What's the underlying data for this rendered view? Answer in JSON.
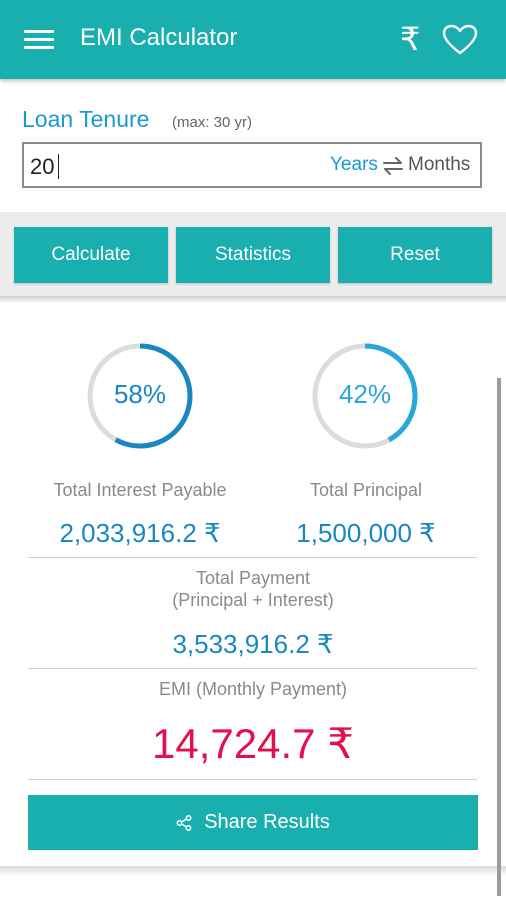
{
  "app": {
    "title": "EMI Calculator",
    "accent_color": "#1aafaf",
    "menu_icon": "hamburger-menu-icon",
    "currency_icon": "rupee-icon",
    "currency_symbol": "₹",
    "favorite_icon": "heart-outline-icon"
  },
  "tenure": {
    "label": "Loan Tenure",
    "max_note": "(max: 30 yr)",
    "value": "20",
    "unit_selected": "Years",
    "unit_other": "Months",
    "swap_icon": "swap-arrows-icon"
  },
  "actions": {
    "calculate": "Calculate",
    "statistics": "Statistics",
    "reset": "Reset"
  },
  "results": {
    "interest_percent_label": "58%",
    "interest_fraction": 0.58,
    "principal_percent_label": "42%",
    "principal_fraction": 0.42,
    "interest_caption": "Total Interest Payable",
    "interest_value": "2,033,916.2 ₹",
    "principal_caption": "Total Principal",
    "principal_value": "1,500,000 ₹",
    "total_caption": "Total Payment",
    "total_subcaption": "(Principal + Interest)",
    "total_value": "3,533,916.2 ₹",
    "emi_caption": "EMI (Monthly Payment)",
    "emi_value": "14,724.7 ₹",
    "emi_color": "#e3104e"
  },
  "share": {
    "label": "Share Results",
    "icon": "share-icon"
  }
}
